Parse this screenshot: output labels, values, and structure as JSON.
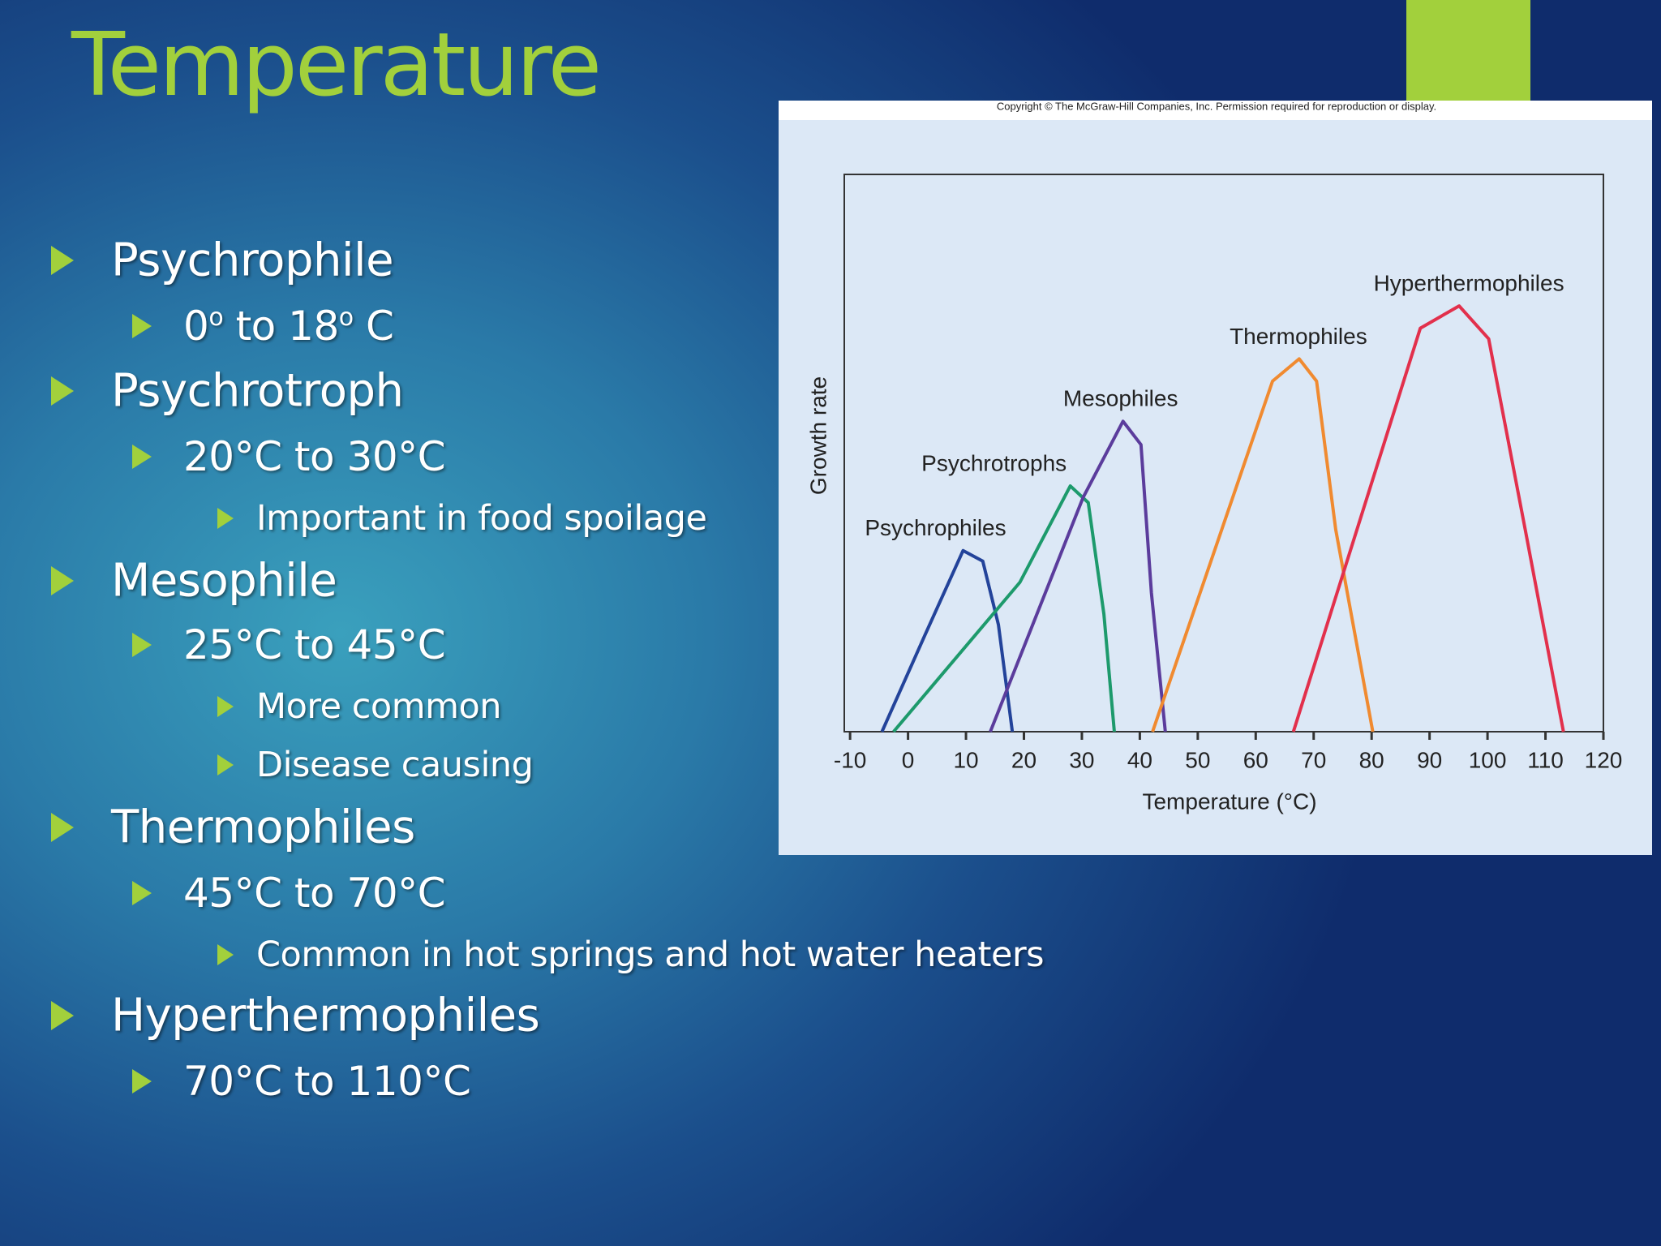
{
  "header": {
    "title": "Temperature"
  },
  "bullets": [
    {
      "level": 1,
      "text": "Psychrophile"
    },
    {
      "level": 2,
      "text_parts": [
        {
          "text": "0"
        },
        {
          "sup": "o"
        },
        {
          "text": " to 18"
        },
        {
          "sup": "o"
        },
        {
          "text": " C"
        }
      ]
    },
    {
      "level": 1,
      "text": "Psychrotroph"
    },
    {
      "level": 2,
      "text": "20°C to 30°C"
    },
    {
      "level": 3,
      "text": "Important in food spoilage"
    },
    {
      "level": 1,
      "text": "Mesophile"
    },
    {
      "level": 2,
      "text": "25°C to 45°C"
    },
    {
      "level": 3,
      "text": "More common"
    },
    {
      "level": 3,
      "text": "Disease causing"
    },
    {
      "level": 1,
      "text": "Thermophiles"
    },
    {
      "level": 2,
      "text": "45°C to 70°C"
    },
    {
      "level": 3,
      "text": "Common in hot springs and hot water heaters"
    },
    {
      "level": 1,
      "text": "Hyperthermophiles"
    },
    {
      "level": 2,
      "text": "70°C to 110°C"
    }
  ],
  "chart_data": {
    "type": "line",
    "copyright": "Copyright © The McGraw-Hill Companies, Inc. Permission required for reproduction or display.",
    "x_label": "Temperature (°C)",
    "y_label": "Growth rate",
    "xlim": [
      -11,
      120
    ],
    "xticks": [
      -10,
      0,
      10,
      20,
      30,
      40,
      50,
      60,
      70,
      80,
      90,
      100,
      110,
      120
    ],
    "ylim": [
      0,
      100
    ],
    "series": [
      {
        "name": "Psychrophiles",
        "color": "#23439a",
        "x": [
          -4.5,
          2.9,
          9.5,
          12.9,
          15.6,
          18
        ],
        "values": [
          0,
          17.3,
          32.5,
          30.6,
          19.2,
          0
        ]
      },
      {
        "name": "Psychrotrophs",
        "color": "#1d9a6c",
        "x": [
          -2.5,
          19.3,
          28,
          31.1,
          33.8,
          35.6
        ],
        "values": [
          0,
          26.8,
          44.1,
          41.1,
          21.1,
          0
        ]
      },
      {
        "name": "Mesophiles",
        "color": "#5b3c9c",
        "x": [
          14.2,
          30.2,
          37.1,
          40.2,
          42,
          44.4
        ],
        "values": [
          0,
          42,
          55.7,
          51.5,
          24.9,
          0
        ]
      },
      {
        "name": "Thermophiles",
        "color": "#f08a30",
        "x": [
          42.2,
          62.9,
          67.5,
          70.5,
          73.8,
          80.2
        ],
        "values": [
          0,
          62.9,
          66.9,
          62.9,
          36.3,
          0
        ]
      },
      {
        "name": "Hyperthermophiles",
        "color": "#e2304c",
        "x": [
          66.5,
          88.4,
          95.1,
          100.2,
          106.5,
          113.1
        ],
        "values": [
          0,
          72.4,
          76.4,
          70.5,
          36.3,
          0
        ]
      }
    ]
  }
}
